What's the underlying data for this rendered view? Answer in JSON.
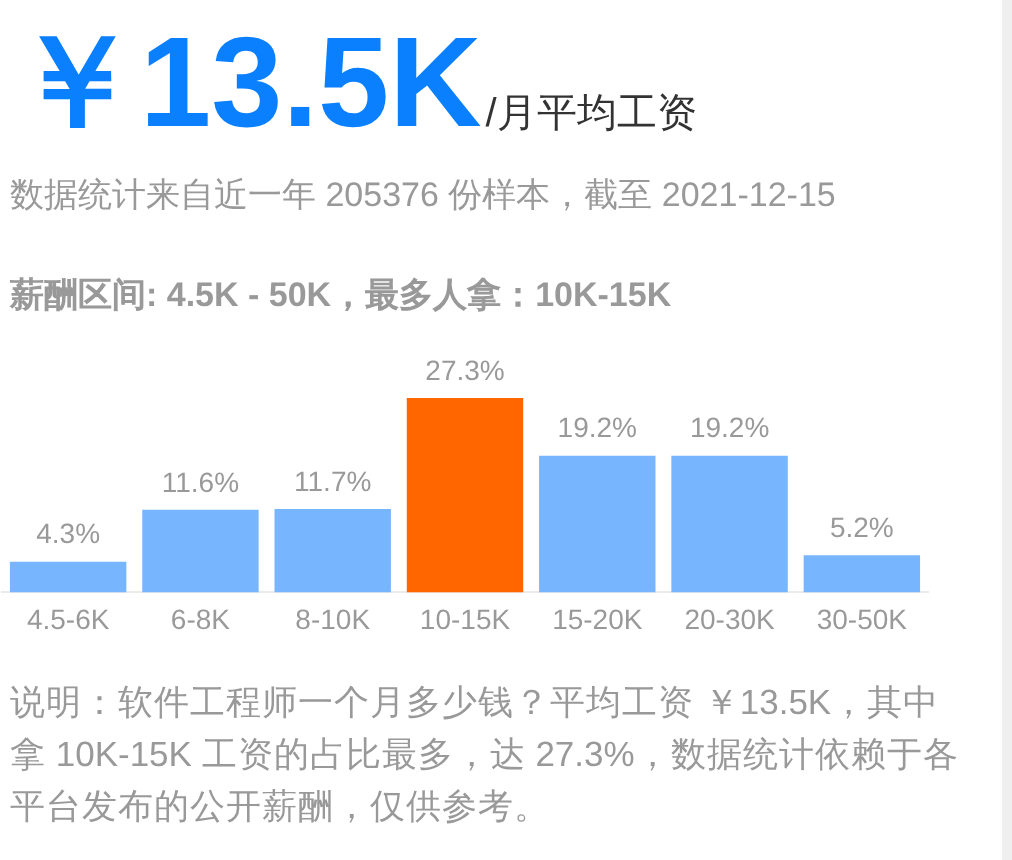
{
  "chart_data": {
    "type": "bar",
    "title": "￥13.5K",
    "subtitle": "/月平均工资",
    "annotations": [
      "数据统计来自近一年 205376 份样本，截至 2021-12-15",
      "薪酬区间: 4.5K - 50K，最多人拿：10K-15K",
      "说明：软件工程师一个月多少钱？平均工资 ￥13.5K，其中拿 10K-15K 工资的占比最多，达 27.3%，数据统计依赖于各平台发布的公开薪酬，仅供参考。"
    ],
    "categories": [
      "4.5-6K",
      "6-8K",
      "8-10K",
      "10-15K",
      "15-20K",
      "20-30K",
      "30-50K"
    ],
    "values": [
      4.3,
      11.6,
      11.7,
      27.3,
      19.2,
      19.2,
      5.2
    ],
    "value_labels": [
      "4.3%",
      "11.6%",
      "11.7%",
      "27.3%",
      "19.2%",
      "19.2%",
      "5.2%"
    ],
    "colors": [
      "#77b6ff",
      "#77b6ff",
      "#77b6ff",
      "#ff6600",
      "#77b6ff",
      "#77b6ff",
      "#77b6ff"
    ],
    "tick_labels": "x"
  }
}
